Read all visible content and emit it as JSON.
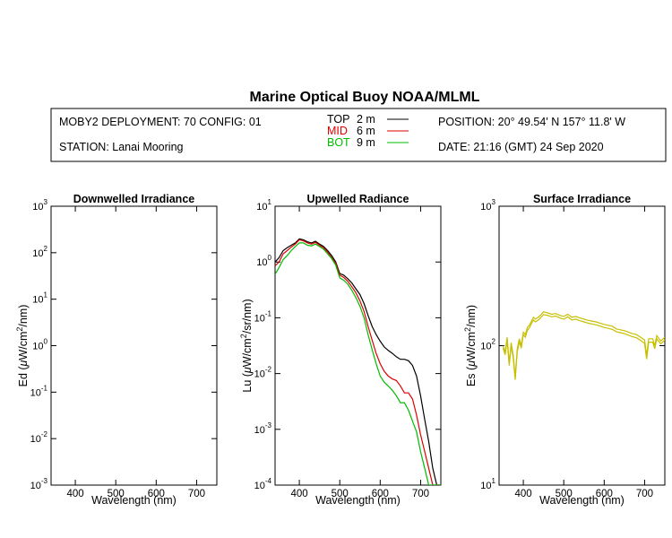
{
  "title": "Marine Optical Buoy NOAA/MLML",
  "header": {
    "deployment": "MOBY2 DEPLOYMENT: 70 CONFIG: 01",
    "station": "STATION: Lanai Mooring",
    "depths": [
      {
        "label": "TOP",
        "depth": "2",
        "unit": "m",
        "color": "#000000"
      },
      {
        "label": "MID",
        "depth": "6",
        "unit": "m",
        "color": "#dd0000"
      },
      {
        "label": "BOT",
        "depth": "9",
        "unit": "m",
        "color": "#00bb00"
      }
    ],
    "position": "POSITION: 20° 49.54' N   157° 11.8' W",
    "date": "DATE: 21:16 (GMT) 24 Sep 2020"
  },
  "chart_data": [
    {
      "type": "line",
      "title": "Downwelled Irradiance",
      "ylabel_parts": [
        "Ed  (",
        "μ",
        "W/cm",
        "2",
        "/nm)"
      ],
      "xlabel": "Wavelength (nm)",
      "xlim": [
        340,
        750
      ],
      "xticks": [
        "400",
        "500",
        "600",
        "700"
      ],
      "yscale": "log",
      "ylim": [
        0.001,
        1000
      ],
      "yticks": [
        "-3",
        "-2",
        "-1",
        "0",
        "1",
        "2",
        "3"
      ],
      "series": []
    },
    {
      "type": "line",
      "title": "Upwelled Radiance",
      "ylabel_parts": [
        "Lu  (",
        "μ",
        "W/cm",
        "2",
        "/sr/nm)"
      ],
      "xlabel": "Wavelength (nm)",
      "xlim": [
        340,
        750
      ],
      "xticks": [
        "400",
        "500",
        "600",
        "700"
      ],
      "yscale": "log",
      "ylim": [
        0.0001,
        10
      ],
      "yticks": [
        "-4",
        "-3",
        "-2",
        "-1",
        "0",
        "1"
      ],
      "series": [
        {
          "name": "TOP",
          "color": "#000000",
          "x": [
            340,
            350,
            360,
            370,
            380,
            390,
            400,
            410,
            420,
            430,
            440,
            450,
            460,
            470,
            480,
            490,
            500,
            510,
            520,
            530,
            540,
            550,
            560,
            570,
            580,
            590,
            600,
            610,
            620,
            630,
            640,
            650,
            660,
            670,
            680,
            690,
            700,
            710,
            720,
            730,
            740,
            750
          ],
          "y": [
            1.0,
            1.2,
            1.6,
            1.8,
            2.0,
            2.2,
            2.6,
            2.5,
            2.3,
            2.2,
            2.35,
            2.1,
            1.9,
            1.6,
            1.3,
            1.0,
            0.62,
            0.58,
            0.5,
            0.42,
            0.33,
            0.26,
            0.18,
            0.11,
            0.07,
            0.05,
            0.038,
            0.03,
            0.026,
            0.023,
            0.02,
            0.018,
            0.018,
            0.017,
            0.014,
            0.009,
            0.004,
            0.0015,
            0.0006,
            0.0002,
            0.0001,
            0.0001
          ]
        },
        {
          "name": "MID",
          "color": "#dd0000",
          "x": [
            340,
            350,
            360,
            370,
            380,
            390,
            400,
            410,
            420,
            430,
            440,
            450,
            460,
            470,
            480,
            490,
            500,
            510,
            520,
            530,
            540,
            550,
            560,
            570,
            580,
            590,
            600,
            610,
            620,
            630,
            640,
            650,
            660,
            670,
            680,
            690,
            700,
            710,
            720,
            730,
            740,
            750
          ],
          "y": [
            0.85,
            1.0,
            1.4,
            1.6,
            1.85,
            2.1,
            2.5,
            2.4,
            2.2,
            2.1,
            2.25,
            2.0,
            1.8,
            1.5,
            1.2,
            0.95,
            0.58,
            0.53,
            0.45,
            0.36,
            0.28,
            0.2,
            0.13,
            0.07,
            0.04,
            0.023,
            0.015,
            0.011,
            0.009,
            0.008,
            0.0075,
            0.006,
            0.0045,
            0.0045,
            0.0035,
            0.0018,
            0.0008,
            0.0004,
            0.0002,
            0.0001,
            0.0001,
            0.0001
          ]
        },
        {
          "name": "BOT",
          "color": "#00bb00",
          "x": [
            340,
            350,
            360,
            370,
            380,
            390,
            400,
            410,
            420,
            430,
            440,
            450,
            460,
            470,
            480,
            490,
            500,
            510,
            520,
            530,
            540,
            550,
            560,
            570,
            580,
            590,
            600,
            610,
            620,
            630,
            640,
            650,
            660,
            670,
            680,
            690,
            700,
            710,
            720,
            730,
            740,
            750
          ],
          "y": [
            0.6,
            0.8,
            1.1,
            1.3,
            1.6,
            1.9,
            2.2,
            2.2,
            2.0,
            1.95,
            2.1,
            1.9,
            1.7,
            1.4,
            1.15,
            0.88,
            0.52,
            0.47,
            0.4,
            0.31,
            0.23,
            0.16,
            0.1,
            0.05,
            0.027,
            0.015,
            0.009,
            0.007,
            0.006,
            0.005,
            0.004,
            0.003,
            0.003,
            0.0022,
            0.0014,
            0.0009,
            0.0004,
            0.0002,
            0.0001,
            0.0001,
            0.0001,
            0.0001
          ]
        }
      ]
    },
    {
      "type": "line",
      "title": "Surface Irradiance",
      "ylabel_parts": [
        "Es  (",
        "μ",
        "W/cm",
        "2",
        "/nm)"
      ],
      "xlabel": "Wavelength (nm)",
      "xlim": [
        340,
        750
      ],
      "xticks": [
        "400",
        "500",
        "600",
        "700"
      ],
      "yscale": "log",
      "ylim": [
        10,
        1000
      ],
      "yticks": [
        "1",
        "2",
        "3"
      ],
      "series": [
        {
          "name": "",
          "color": "#c8bf00",
          "x": [
            350,
            355,
            360,
            365,
            370,
            375,
            380,
            385,
            390,
            395,
            400,
            405,
            410,
            415,
            420,
            425,
            430,
            440,
            450,
            460,
            470,
            480,
            490,
            500,
            510,
            520,
            530,
            540,
            550,
            560,
            570,
            580,
            590,
            600,
            610,
            620,
            630,
            640,
            650,
            660,
            670,
            680,
            690,
            700,
            705,
            710,
            720,
            725,
            730,
            740,
            750
          ],
          "y": [
            100,
            90,
            115,
            75,
            105,
            85,
            60,
            95,
            112,
            100,
            125,
            120,
            135,
            140,
            150,
            160,
            155,
            162,
            175,
            172,
            168,
            170,
            165,
            162,
            168,
            160,
            162,
            158,
            155,
            152,
            150,
            148,
            145,
            142,
            140,
            138,
            132,
            130,
            128,
            125,
            122,
            120,
            115,
            110,
            85,
            112,
            112,
            100,
            118,
            108,
            115
          ]
        },
        {
          "name": "",
          "color": "#c8bf00",
          "x": [
            350,
            355,
            360,
            365,
            370,
            375,
            380,
            385,
            390,
            395,
            400,
            405,
            410,
            415,
            420,
            425,
            430,
            440,
            450,
            460,
            470,
            480,
            490,
            500,
            510,
            520,
            530,
            540,
            550,
            560,
            570,
            580,
            590,
            600,
            610,
            620,
            630,
            640,
            650,
            660,
            670,
            680,
            690,
            700,
            705,
            710,
            720,
            725,
            730,
            740,
            750
          ],
          "y": [
            96,
            86,
            110,
            72,
            100,
            81,
            57,
            90,
            107,
            96,
            120,
            115,
            129,
            134,
            144,
            153,
            148,
            155,
            167,
            165,
            161,
            163,
            158,
            155,
            161,
            153,
            155,
            151,
            148,
            145,
            143,
            141,
            138,
            135,
            133,
            131,
            126,
            124,
            122,
            119,
            116,
            114,
            109,
            104,
            80,
            106,
            106,
            95,
            112,
            103,
            110
          ]
        }
      ]
    }
  ]
}
